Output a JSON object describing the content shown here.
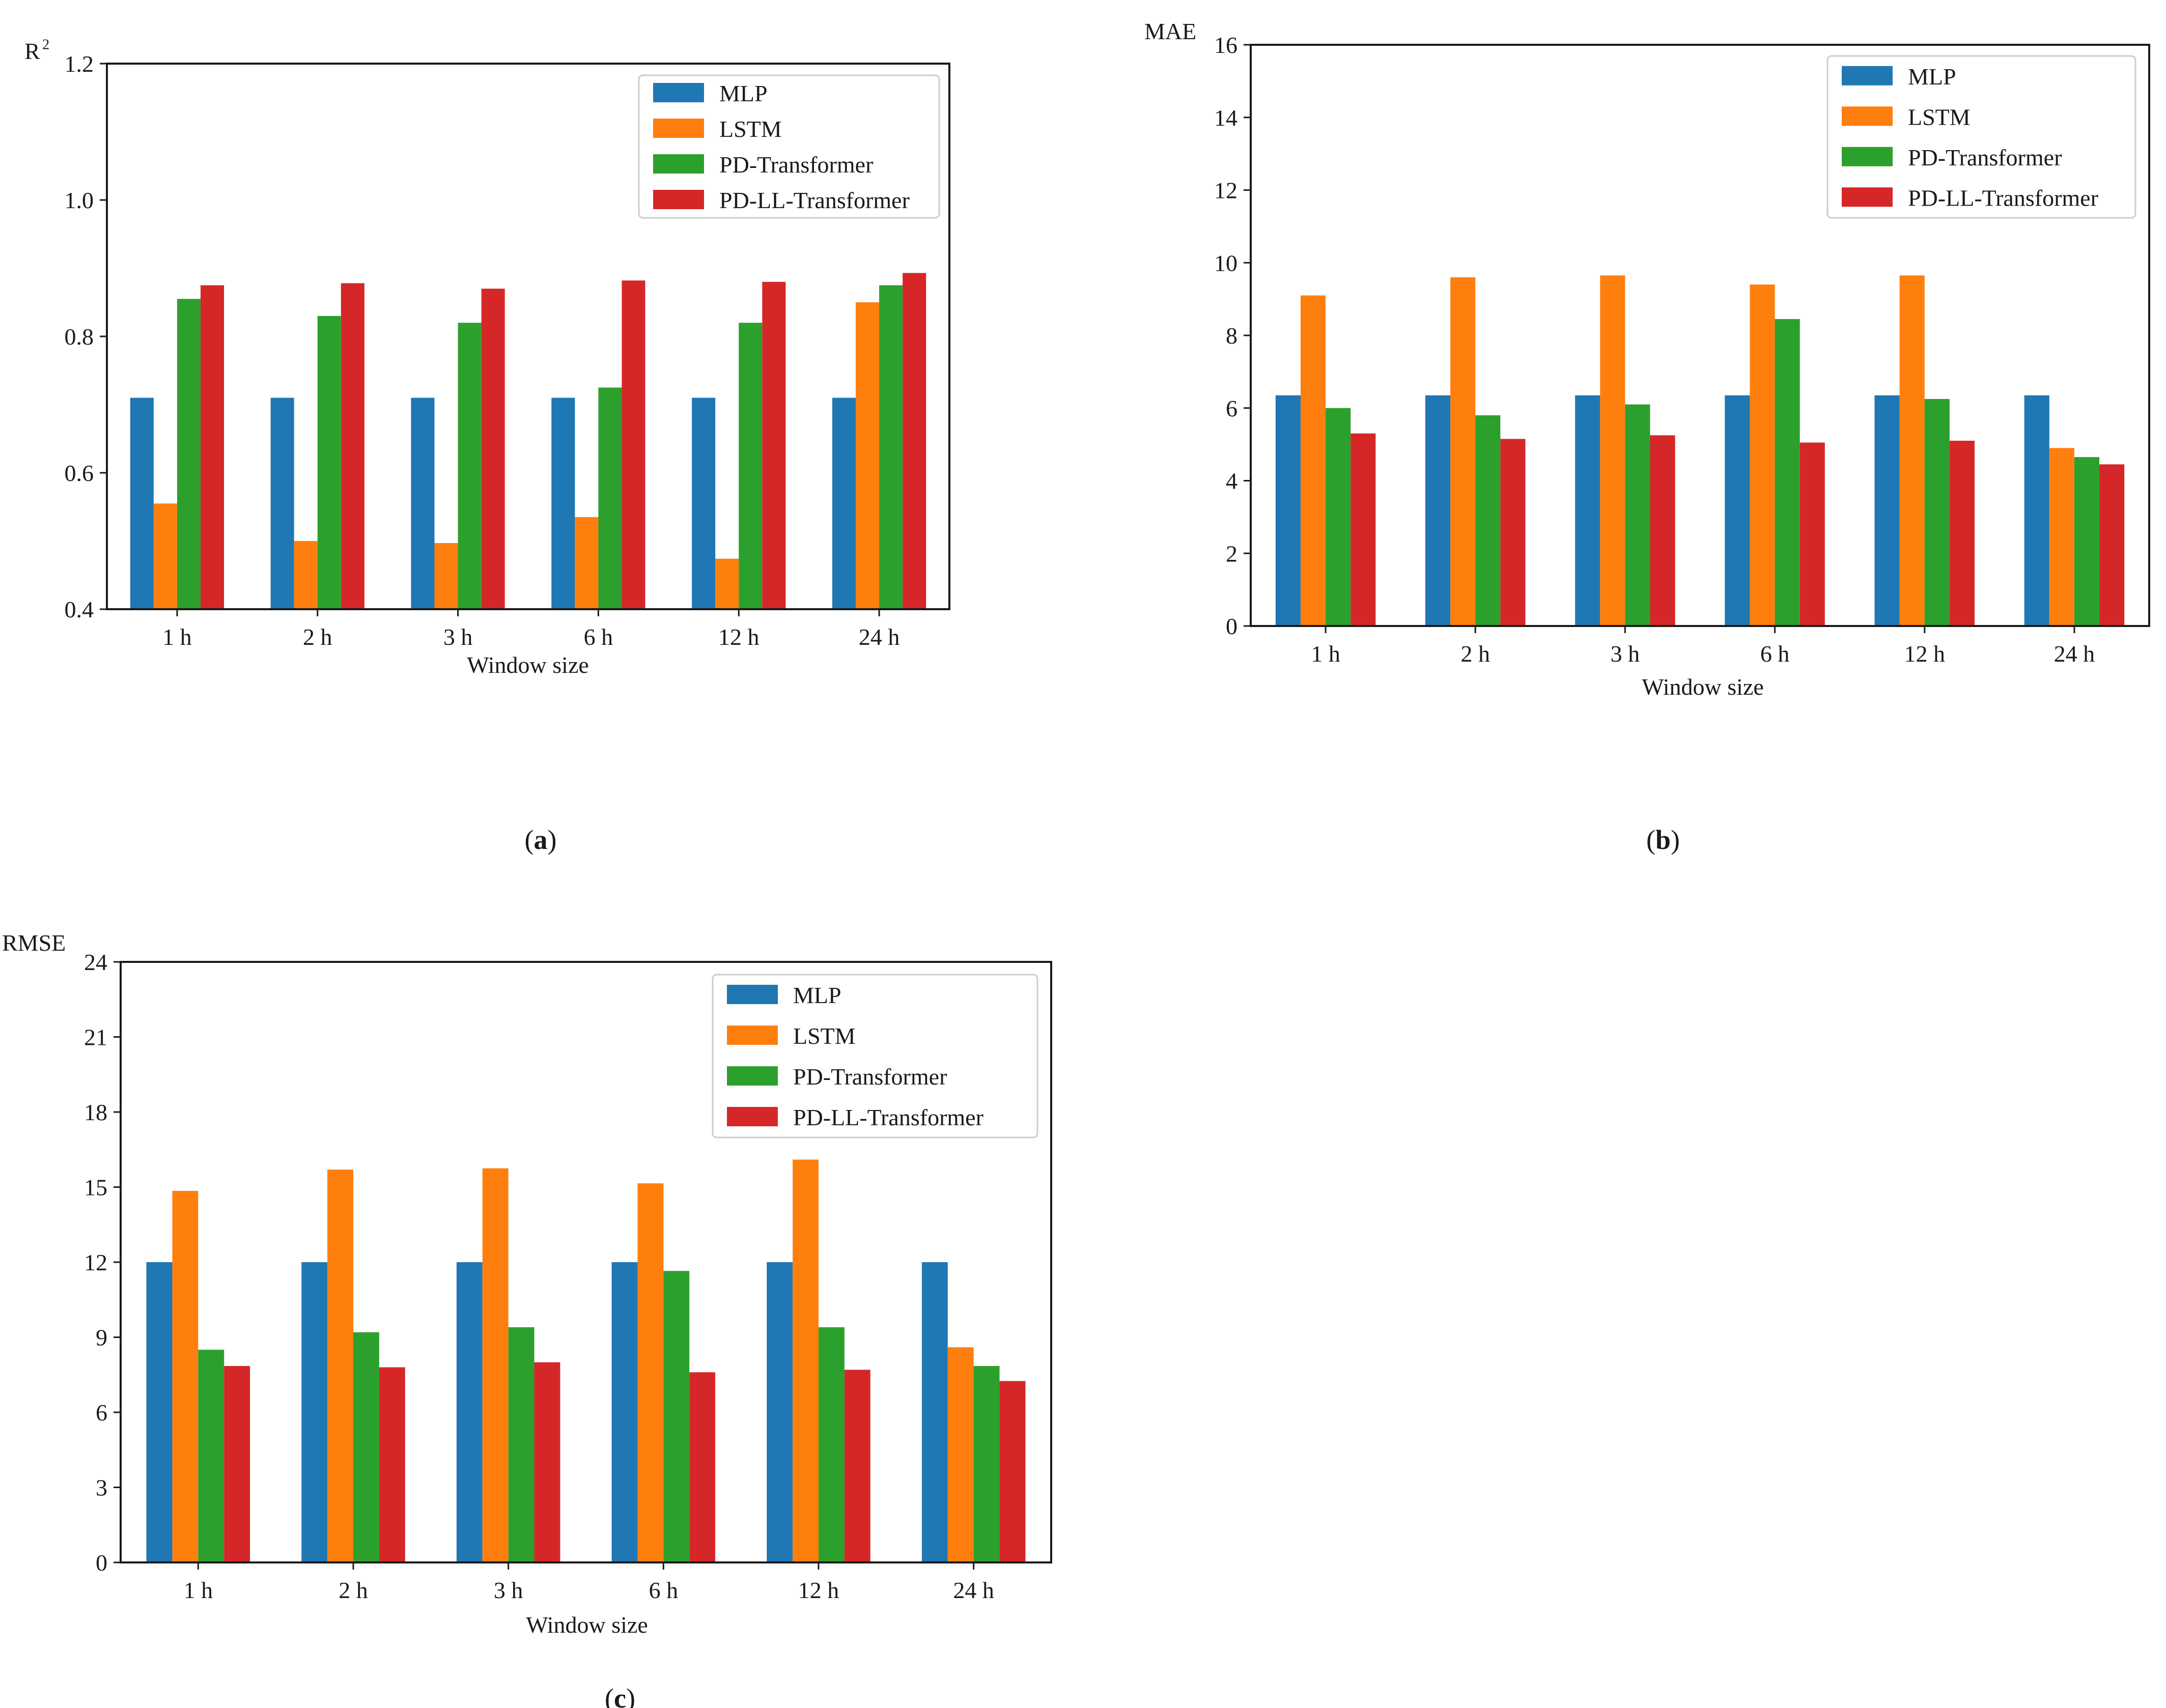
{
  "colors": {
    "MLP": "#1f77b4",
    "LSTM": "#ff7f0e",
    "PD-Transformer": "#2ca02c",
    "PD-LL-Transformer": "#d62728"
  },
  "chart_data": [
    {
      "panel": "a",
      "panel_label": [
        "(",
        "a",
        ")"
      ],
      "type": "bar",
      "ylabel": "R",
      "ylabel_sup": "2",
      "xlabel": "Window size",
      "categories": [
        "1 h",
        "2 h",
        "3 h",
        "6 h",
        "12 h",
        "24 h"
      ],
      "ylim": [
        0.4,
        1.2
      ],
      "yticks": [
        0.4,
        0.6,
        0.8,
        1.0,
        1.2
      ],
      "ytick_labels": [
        "0.4",
        "0.6",
        "0.8",
        "1.0",
        "1.2"
      ],
      "legend_position": "top-right",
      "series": [
        {
          "name": "MLP",
          "values": [
            0.71,
            0.71,
            0.71,
            0.71,
            0.71,
            0.71
          ]
        },
        {
          "name": "LSTM",
          "values": [
            0.555,
            0.5,
            0.497,
            0.535,
            0.474,
            0.85
          ]
        },
        {
          "name": "PD-Transformer",
          "values": [
            0.855,
            0.83,
            0.82,
            0.725,
            0.82,
            0.875
          ]
        },
        {
          "name": "PD-LL-Transformer",
          "values": [
            0.875,
            0.878,
            0.87,
            0.882,
            0.88,
            0.893
          ]
        }
      ]
    },
    {
      "panel": "b",
      "panel_label": [
        "(",
        "b",
        ")"
      ],
      "type": "bar",
      "ylabel": "MAE",
      "ylabel_sup": "",
      "xlabel": "Window size",
      "categories": [
        "1 h",
        "2 h",
        "3 h",
        "6 h",
        "12 h",
        "24 h"
      ],
      "ylim": [
        0,
        16
      ],
      "yticks": [
        0,
        2,
        4,
        6,
        8,
        10,
        12,
        14,
        16
      ],
      "ytick_labels": [
        "0",
        "2",
        "4",
        "6",
        "8",
        "10",
        "12",
        "14",
        "16"
      ],
      "legend_position": "top-right",
      "series": [
        {
          "name": "MLP",
          "values": [
            6.35,
            6.35,
            6.35,
            6.35,
            6.35,
            6.35
          ]
        },
        {
          "name": "LSTM",
          "values": [
            9.1,
            9.6,
            9.65,
            9.4,
            9.65,
            4.9
          ]
        },
        {
          "name": "PD-Transformer",
          "values": [
            6.0,
            5.8,
            6.1,
            8.45,
            6.25,
            4.65
          ]
        },
        {
          "name": "PD-LL-Transformer",
          "values": [
            5.3,
            5.15,
            5.25,
            5.05,
            5.1,
            4.45
          ]
        }
      ]
    },
    {
      "panel": "c",
      "panel_label": [
        "(",
        "c",
        ")"
      ],
      "type": "bar",
      "ylabel": "RMSE",
      "ylabel_sup": "",
      "xlabel": "Window size",
      "categories": [
        "1 h",
        "2 h",
        "3 h",
        "6 h",
        "12 h",
        "24 h"
      ],
      "ylim": [
        0,
        24
      ],
      "yticks": [
        0,
        3,
        6,
        9,
        12,
        15,
        18,
        21,
        24
      ],
      "ytick_labels": [
        "0",
        "3",
        "6",
        "9",
        "12",
        "15",
        "18",
        "21",
        "24"
      ],
      "legend_position": "top-right",
      "series": [
        {
          "name": "MLP",
          "values": [
            12.0,
            12.0,
            12.0,
            12.0,
            12.0,
            12.0
          ]
        },
        {
          "name": "LSTM",
          "values": [
            14.85,
            15.7,
            15.75,
            15.15,
            16.1,
            8.6
          ]
        },
        {
          "name": "PD-Transformer",
          "values": [
            8.5,
            9.2,
            9.4,
            11.65,
            9.4,
            7.85
          ]
        },
        {
          "name": "PD-LL-Transformer",
          "values": [
            7.85,
            7.8,
            8.0,
            7.6,
            7.7,
            7.25
          ]
        }
      ]
    }
  ]
}
